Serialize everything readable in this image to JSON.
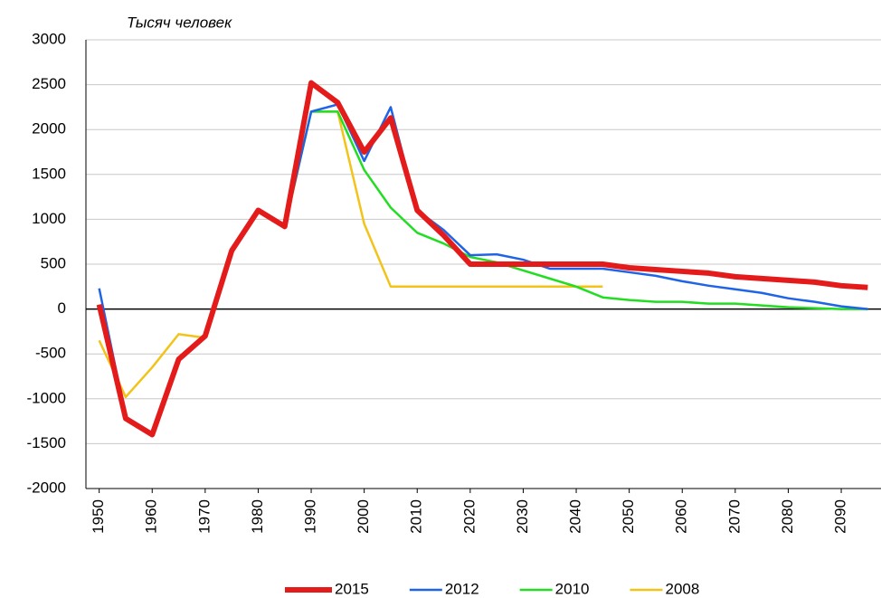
{
  "chart_data": {
    "type": "line",
    "y_label": "Тысяч человек",
    "x": [
      1950,
      1955,
      1960,
      1965,
      1970,
      1975,
      1980,
      1985,
      1990,
      1995,
      2000,
      2005,
      2010,
      2015,
      2020,
      2025,
      2030,
      2035,
      2040,
      2045,
      2050,
      2055,
      2060,
      2065,
      2070,
      2075,
      2080,
      2085,
      2090,
      2095
    ],
    "series": [
      {
        "name": "2015",
        "color": "#e41b1b",
        "line_width": 6,
        "values": [
          50,
          -1220,
          -1400,
          -560,
          -300,
          650,
          1100,
          920,
          2520,
          2300,
          1750,
          2130,
          1100,
          820,
          500,
          500,
          500,
          500,
          500,
          500,
          460,
          440,
          420,
          400,
          360,
          340,
          320,
          300,
          260,
          240
        ]
      },
      {
        "name": "2012",
        "color": "#1f64e6",
        "line_width": 2.5,
        "values": [
          230,
          -1200,
          -1380,
          -550,
          -310,
          650,
          1100,
          920,
          2200,
          2280,
          1650,
          2250,
          1100,
          880,
          600,
          610,
          550,
          450,
          450,
          450,
          410,
          370,
          310,
          260,
          220,
          180,
          120,
          80,
          30,
          0
        ]
      },
      {
        "name": "2010",
        "color": "#22dd22",
        "line_width": 2.5,
        "values": [
          50,
          -1220,
          -1400,
          -560,
          -300,
          650,
          1100,
          920,
          2200,
          2200,
          1550,
          1130,
          850,
          730,
          580,
          520,
          430,
          340,
          250,
          130,
          100,
          80,
          80,
          60,
          60,
          40,
          20,
          10,
          0,
          0
        ]
      },
      {
        "name": "2008",
        "color": "#f2c318",
        "line_width": 2.5,
        "values": [
          -350,
          -980,
          -650,
          -280,
          -320,
          630,
          1100,
          900,
          2200,
          2200,
          950,
          250,
          250,
          250,
          250,
          250,
          250,
          250,
          250,
          250,
          null,
          null,
          null,
          null,
          null,
          null,
          null,
          null,
          null,
          null
        ]
      }
    ],
    "xlim": [
      1947.5,
      2097.5
    ],
    "xticks": [
      1950,
      1960,
      1970,
      1980,
      1990,
      2000,
      2010,
      2020,
      2030,
      2040,
      2050,
      2060,
      2070,
      2080,
      2090
    ],
    "ylim": [
      -2000,
      3000
    ],
    "yticks": [
      -2000,
      -1500,
      -1000,
      -500,
      0,
      500,
      1000,
      1500,
      2000,
      2500,
      3000
    ],
    "grid": true,
    "legend": "bottom"
  }
}
